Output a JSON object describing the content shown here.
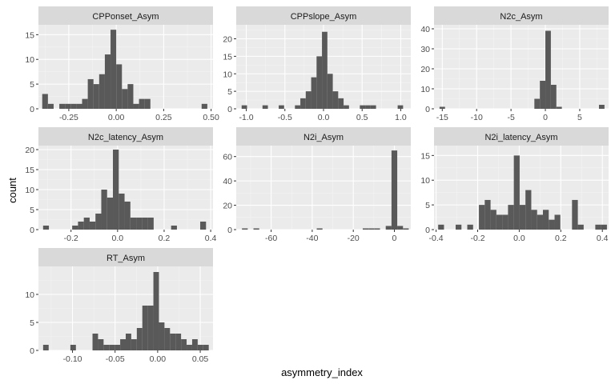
{
  "chart_data": {
    "type": "bar",
    "subtype": "faceted-histogram",
    "xlabel": "asymmetry_index",
    "ylabel": "count",
    "grid": true,
    "colors": {
      "bar": "#595959",
      "panel_bg": "#ebebeb",
      "strip_bg": "#d9d9d9",
      "grid_major": "#ffffff"
    },
    "facets": [
      {
        "name": "CPPonset_Asym",
        "xlim": [
          -0.41,
          0.51
        ],
        "ylim": [
          0,
          17
        ],
        "xticks": [
          -0.25,
          0.0,
          0.25,
          0.5
        ],
        "xtick_labels": [
          "-0.25",
          "0.00",
          "0.25",
          "0.50"
        ],
        "yticks": [
          0,
          5,
          10,
          15
        ],
        "ytick_labels": [
          "0",
          "5",
          "10",
          "15"
        ],
        "bins": [
          [
            -0.39,
            -0.36,
            3
          ],
          [
            -0.36,
            -0.33,
            1
          ],
          [
            -0.3,
            -0.27,
            1
          ],
          [
            -0.27,
            -0.24,
            1
          ],
          [
            -0.24,
            -0.21,
            1
          ],
          [
            -0.21,
            -0.18,
            1
          ],
          [
            -0.18,
            -0.15,
            2
          ],
          [
            -0.15,
            -0.12,
            6
          ],
          [
            -0.12,
            -0.09,
            5
          ],
          [
            -0.09,
            -0.06,
            7
          ],
          [
            -0.06,
            -0.03,
            11
          ],
          [
            -0.03,
            0.0,
            16
          ],
          [
            0.0,
            0.03,
            9
          ],
          [
            0.03,
            0.06,
            4
          ],
          [
            0.06,
            0.09,
            5
          ],
          [
            0.09,
            0.12,
            1
          ],
          [
            0.12,
            0.15,
            2
          ],
          [
            0.15,
            0.18,
            2
          ],
          [
            0.45,
            0.48,
            1
          ]
        ]
      },
      {
        "name": "CPPslope_Asym",
        "xlim": [
          -1.13,
          1.13
        ],
        "ylim": [
          0,
          24
        ],
        "xticks": [
          -1.0,
          -0.5,
          0.0,
          0.5,
          1.0
        ],
        "xtick_labels": [
          "-1.0",
          "-0.5",
          "0.0",
          "0.5",
          "1.0"
        ],
        "yticks": [
          0,
          5,
          10,
          15,
          20
        ],
        "ytick_labels": [
          "0",
          "5",
          "10",
          "15",
          "20"
        ],
        "bins": [
          [
            -1.06,
            -0.99,
            1
          ],
          [
            -0.79,
            -0.72,
            1
          ],
          [
            -0.58,
            -0.51,
            1
          ],
          [
            -0.37,
            -0.3,
            1
          ],
          [
            -0.3,
            -0.23,
            3
          ],
          [
            -0.23,
            -0.16,
            5
          ],
          [
            -0.16,
            -0.09,
            9
          ],
          [
            -0.09,
            -0.02,
            15
          ],
          [
            -0.02,
            0.05,
            22
          ],
          [
            0.05,
            0.12,
            10
          ],
          [
            0.12,
            0.19,
            5
          ],
          [
            0.19,
            0.26,
            3
          ],
          [
            0.26,
            0.33,
            1
          ],
          [
            0.47,
            0.54,
            1
          ],
          [
            0.54,
            0.61,
            1
          ],
          [
            0.61,
            0.68,
            1
          ],
          [
            0.96,
            1.03,
            1
          ]
        ]
      },
      {
        "name": "N2c_Asym",
        "xlim": [
          -16.2,
          9.2
        ],
        "ylim": [
          0,
          42
        ],
        "xticks": [
          -15,
          -10,
          -5,
          0,
          5
        ],
        "xtick_labels": [
          "-15",
          "-10",
          "-5",
          "0",
          "5"
        ],
        "yticks": [
          0,
          10,
          20,
          30,
          40
        ],
        "ytick_labels": [
          "0",
          "10",
          "20",
          "30",
          "40"
        ],
        "bins": [
          [
            -15.4,
            -14.6,
            1
          ],
          [
            -1.6,
            -0.8,
            5
          ],
          [
            -0.8,
            0.0,
            14
          ],
          [
            0.0,
            0.8,
            39
          ],
          [
            0.8,
            1.6,
            12
          ],
          [
            1.6,
            2.4,
            1
          ],
          [
            7.8,
            8.6,
            2
          ]
        ]
      },
      {
        "name": "N2c_latency_Asym",
        "xlim": [
          -0.34,
          0.41
        ],
        "ylim": [
          0,
          21
        ],
        "xticks": [
          -0.2,
          0.0,
          0.2,
          0.4
        ],
        "xtick_labels": [
          "-0.2",
          "0.0",
          "0.2",
          "0.4"
        ],
        "yticks": [
          0,
          5,
          10,
          15,
          20
        ],
        "ytick_labels": [
          "0",
          "5",
          "10",
          "15",
          "20"
        ],
        "bins": [
          [
            -0.32,
            -0.295,
            1
          ],
          [
            -0.195,
            -0.17,
            1
          ],
          [
            -0.17,
            -0.145,
            2
          ],
          [
            -0.145,
            -0.12,
            3
          ],
          [
            -0.12,
            -0.095,
            2
          ],
          [
            -0.095,
            -0.07,
            4
          ],
          [
            -0.07,
            -0.045,
            10
          ],
          [
            -0.045,
            -0.02,
            8
          ],
          [
            -0.02,
            0.005,
            20
          ],
          [
            0.005,
            0.03,
            9
          ],
          [
            0.03,
            0.055,
            7
          ],
          [
            0.055,
            0.08,
            3
          ],
          [
            0.08,
            0.105,
            3
          ],
          [
            0.105,
            0.13,
            3
          ],
          [
            0.13,
            0.155,
            3
          ],
          [
            0.23,
            0.255,
            1
          ],
          [
            0.355,
            0.38,
            2
          ]
        ]
      },
      {
        "name": "N2i_Asym",
        "xlim": [
          -77,
          8
        ],
        "ylim": [
          0,
          69
        ],
        "xticks": [
          -60,
          -40,
          -20,
          0
        ],
        "xtick_labels": [
          "-60",
          "-40",
          "-20",
          "0"
        ],
        "yticks": [
          0,
          20,
          40,
          60
        ],
        "ytick_labels": [
          "0",
          "20",
          "40",
          "60"
        ],
        "bins": [
          [
            -74.2,
            -71.4,
            1
          ],
          [
            -68.6,
            -65.8,
            1
          ],
          [
            -37.8,
            -35.0,
            1
          ],
          [
            -15.4,
            -12.6,
            1
          ],
          [
            -12.6,
            -9.8,
            1
          ],
          [
            -9.8,
            -7.0,
            1
          ],
          [
            -4.2,
            -1.4,
            3
          ],
          [
            -1.4,
            1.4,
            65
          ],
          [
            1.4,
            4.2,
            3
          ],
          [
            4.2,
            7.0,
            1
          ]
        ]
      },
      {
        "name": "N2i_latency_Asym",
        "xlim": [
          -0.41,
          0.43
        ],
        "ylim": [
          0,
          17
        ],
        "xticks": [
          -0.4,
          -0.2,
          0.0,
          0.2,
          0.4
        ],
        "xtick_labels": [
          "-0.4",
          "-0.2",
          "0.0",
          "0.2",
          "0.4"
        ],
        "yticks": [
          0,
          5,
          10,
          15
        ],
        "ytick_labels": [
          "0",
          "5",
          "10",
          "15"
        ],
        "bins": [
          [
            -0.39,
            -0.362,
            1
          ],
          [
            -0.306,
            -0.278,
            1
          ],
          [
            -0.25,
            -0.222,
            1
          ],
          [
            -0.194,
            -0.166,
            5
          ],
          [
            -0.166,
            -0.138,
            6
          ],
          [
            -0.138,
            -0.11,
            4
          ],
          [
            -0.11,
            -0.082,
            3
          ],
          [
            -0.082,
            -0.054,
            3
          ],
          [
            -0.054,
            -0.026,
            5
          ],
          [
            -0.026,
            0.002,
            15
          ],
          [
            0.002,
            0.03,
            5
          ],
          [
            0.03,
            0.058,
            8
          ],
          [
            0.058,
            0.086,
            4
          ],
          [
            0.086,
            0.114,
            3
          ],
          [
            0.114,
            0.142,
            4
          ],
          [
            0.142,
            0.17,
            2
          ],
          [
            0.17,
            0.198,
            3
          ],
          [
            0.254,
            0.282,
            6
          ],
          [
            0.282,
            0.31,
            1
          ],
          [
            0.366,
            0.394,
            1
          ],
          [
            0.394,
            0.422,
            1
          ]
        ]
      },
      {
        "name": "RT_Asym",
        "xlim": [
          -0.14,
          0.065
        ],
        "ylim": [
          0,
          15
        ],
        "xticks": [
          -0.1,
          -0.05,
          0.0,
          0.05
        ],
        "xtick_labels": [
          "-0.10",
          "-0.05",
          "0.00",
          "0.05"
        ],
        "yticks": [
          0,
          5,
          10
        ],
        "ytick_labels": [
          "0",
          "5",
          "10"
        ],
        "bins": [
          [
            -0.1345,
            -0.128,
            1
          ],
          [
            -0.1025,
            -0.096,
            1
          ],
          [
            -0.0765,
            -0.07,
            3
          ],
          [
            -0.07,
            -0.0635,
            2
          ],
          [
            -0.0635,
            -0.057,
            1
          ],
          [
            -0.057,
            -0.0505,
            1
          ],
          [
            -0.0505,
            -0.044,
            1
          ],
          [
            -0.044,
            -0.0375,
            2
          ],
          [
            -0.0375,
            -0.031,
            3
          ],
          [
            -0.031,
            -0.0245,
            2
          ],
          [
            -0.0245,
            -0.018,
            4
          ],
          [
            -0.018,
            -0.0115,
            8
          ],
          [
            -0.0115,
            -0.005,
            8
          ],
          [
            -0.005,
            0.0015,
            14
          ],
          [
            0.0015,
            0.008,
            5
          ],
          [
            0.008,
            0.0145,
            4
          ],
          [
            0.0145,
            0.021,
            3
          ],
          [
            0.021,
            0.0275,
            3
          ],
          [
            0.0275,
            0.034,
            2
          ],
          [
            0.034,
            0.0405,
            1
          ],
          [
            0.0405,
            0.047,
            2
          ],
          [
            0.047,
            0.0535,
            1
          ],
          [
            0.0535,
            0.06,
            1
          ]
        ]
      }
    ]
  }
}
